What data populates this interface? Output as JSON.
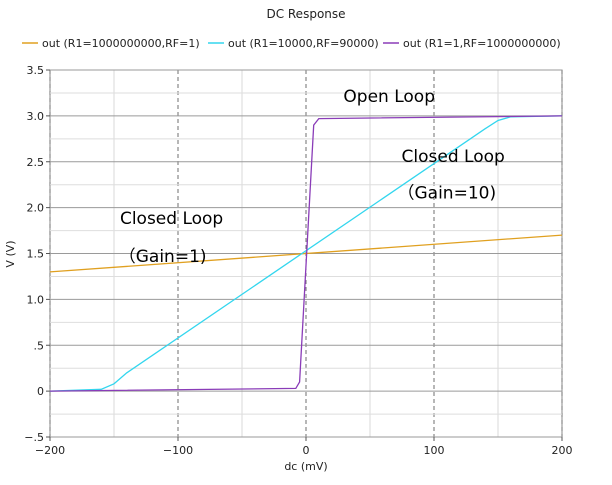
{
  "chart_data": {
    "type": "line",
    "title": "DC Response",
    "xlabel": "dc (mV)",
    "ylabel": "V (V)",
    "xlim": [
      -200,
      200
    ],
    "ylim": [
      -0.5,
      3.5
    ],
    "xticks": [
      -200,
      -100,
      0,
      100,
      200
    ],
    "xtick_labels": [
      "−200",
      "−100",
      "0",
      "100",
      "200"
    ],
    "yticks": [
      -0.5,
      0,
      0.5,
      1.0,
      1.5,
      2.0,
      2.5,
      3.0,
      3.5
    ],
    "ytick_labels": [
      "−.5",
      "0",
      ".5",
      "1.0",
      "1.5",
      "2.0",
      "2.5",
      "3.0",
      "3.5"
    ],
    "grid": true,
    "legend_position": "top",
    "series": [
      {
        "name": "out (R1=1000000000,RF=1)",
        "color": "#e0a020",
        "x": [
          -200,
          200
        ],
        "y": [
          1.3,
          1.7
        ]
      },
      {
        "name": "out (R1=10000,RF=90000)",
        "color": "#33d6ee",
        "x": [
          -200,
          -160,
          -150,
          -140,
          140,
          150,
          160,
          200
        ],
        "y": [
          0.0,
          0.02,
          0.08,
          0.2,
          2.86,
          2.95,
          2.99,
          3.0
        ]
      },
      {
        "name": "out (R1=1,RF=1000000000)",
        "color": "#8a3cb8",
        "x": [
          -200,
          -8,
          -5,
          6,
          10,
          200
        ],
        "y": [
          0.0,
          0.03,
          0.1,
          2.9,
          2.97,
          3.0
        ]
      }
    ],
    "annotations": [
      {
        "text": "Open Loop",
        "x": 65,
        "y": 3.15
      },
      {
        "text": "Closed Loop",
        "x": 115,
        "y": 2.5
      },
      {
        "text": "（Gain=10)",
        "x": 110,
        "y": 2.1
      },
      {
        "text": "Closed Loop",
        "x": -105,
        "y": 1.82
      },
      {
        "text": "（Gain=1)",
        "x": -112,
        "y": 1.41
      }
    ]
  }
}
